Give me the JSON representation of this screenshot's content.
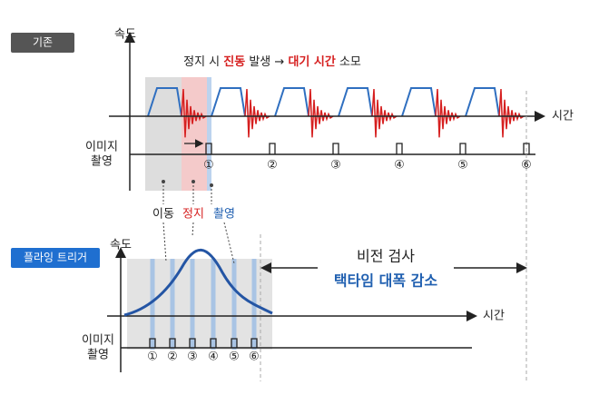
{
  "top": {
    "badge": "기존",
    "y_label": "속도",
    "annotation": [
      "정지 시",
      "진동",
      "발생 →",
      "대기 시간",
      "소모"
    ],
    "x_label": "시간",
    "capture_label": [
      "이미지",
      "촬영"
    ],
    "shots": [
      "①",
      "②",
      "③",
      "④",
      "⑤",
      "⑥"
    ],
    "phases": [
      "이동",
      "정지",
      "촬영"
    ]
  },
  "bottom": {
    "badge": "플라잉 트리거",
    "y_label": "속도",
    "x_label": "시간",
    "capture_label": [
      "이미지",
      "촬영"
    ],
    "shots": [
      "①",
      "②",
      "③",
      "④",
      "⑤",
      "⑥"
    ],
    "note": [
      "비전 검사",
      "택타임 대폭 감소"
    ]
  }
}
